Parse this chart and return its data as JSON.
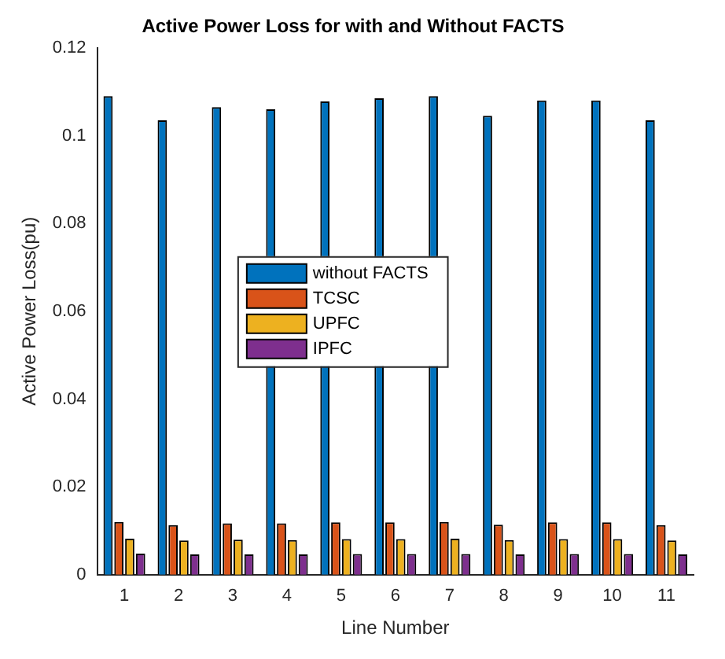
{
  "chart_data": {
    "type": "bar",
    "title": "Active Power Loss for with and Without FACTS",
    "xlabel": "Line Number",
    "ylabel": "Active Power Loss(pu)",
    "categories": [
      "1",
      "2",
      "3",
      "4",
      "5",
      "6",
      "7",
      "8",
      "9",
      "10",
      "11"
    ],
    "series": [
      {
        "name": "without FACTS",
        "color": "#0072bd",
        "values": [
          0.109,
          0.1035,
          0.1065,
          0.106,
          0.1078,
          0.1085,
          0.109,
          0.1045,
          0.108,
          0.108,
          0.1035
        ]
      },
      {
        "name": "TCSC",
        "color": "#d95319",
        "values": [
          0.012,
          0.0113,
          0.0117,
          0.0117,
          0.0119,
          0.0119,
          0.012,
          0.0114,
          0.0119,
          0.0119,
          0.0113
        ]
      },
      {
        "name": "UPFC",
        "color": "#edb120",
        "values": [
          0.0082,
          0.0078,
          0.008,
          0.0079,
          0.0081,
          0.0081,
          0.0082,
          0.0079,
          0.0081,
          0.0081,
          0.0078
        ]
      },
      {
        "name": "IPFC",
        "color": "#7e2f8e",
        "values": [
          0.0048,
          0.0046,
          0.0046,
          0.0046,
          0.0047,
          0.0047,
          0.0047,
          0.0046,
          0.0047,
          0.0047,
          0.0046
        ]
      }
    ],
    "ylim": [
      0,
      0.12
    ],
    "yticks": [
      0,
      0.02,
      0.04,
      0.06,
      0.08,
      0.1,
      0.12
    ],
    "grid": false,
    "legend": "center"
  }
}
